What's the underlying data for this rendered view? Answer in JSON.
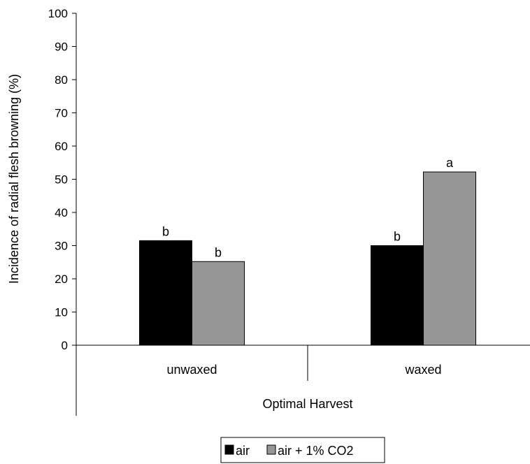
{
  "chart_data": {
    "type": "bar",
    "ylabel": "Incidence of radial flesh browning (%)",
    "xlabel": "Optimal Harvest",
    "ylim": [
      0,
      100
    ],
    "yticks": [
      0,
      10,
      20,
      30,
      40,
      50,
      60,
      70,
      80,
      90,
      100
    ],
    "categories": [
      "unwaxed",
      "waxed"
    ],
    "series": [
      {
        "name": "air",
        "color": "#000000",
        "values": [
          31.5,
          30
        ],
        "letters": [
          "b",
          "b"
        ]
      },
      {
        "name": "air + 1% CO2",
        "color": "#969696",
        "values": [
          25.2,
          52.2
        ],
        "letters": [
          "b",
          "a"
        ]
      }
    ],
    "grid": false,
    "legend_position": "bottom-center"
  }
}
